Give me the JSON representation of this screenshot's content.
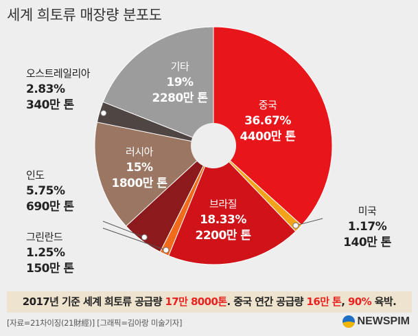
{
  "title": "세계 희토류 매장량 분포도",
  "chart_data": {
    "type": "pie",
    "title": "세계 희토류 매장량 분포도",
    "slices": [
      {
        "name": "중국",
        "percent_label": "36.67%",
        "amount_label": "4400만 톤",
        "value": 4400,
        "color": "#e8151b"
      },
      {
        "name": "미국",
        "percent_label": "1.17%",
        "amount_label": "140만 톤",
        "value": 140,
        "color": "#f5a21b"
      },
      {
        "name": "브라질",
        "percent_label": "18.33%",
        "amount_label": "2200만 톤",
        "value": 2200,
        "color": "#cf1319"
      },
      {
        "name": "그린란드",
        "percent_label": "1.25%",
        "amount_label": "150만 톤",
        "value": 150,
        "color": "#f26b1d"
      },
      {
        "name": "인도",
        "percent_label": "5.75%",
        "amount_label": "690만 톤",
        "value": 690,
        "color": "#8c1a1c"
      },
      {
        "name": "러시아",
        "percent_label": "15%",
        "amount_label": "1800만 톤",
        "value": 1800,
        "color": "#9b7662"
      },
      {
        "name": "오스트레일리아",
        "percent_label": "2.83%",
        "amount_label": "340만 톤",
        "value": 340,
        "color": "#4f4542"
      },
      {
        "name": "기타",
        "percent_label": "19%",
        "amount_label": "2280만 톤",
        "value": 2280,
        "color": "#9c9c9c"
      }
    ]
  },
  "summary": {
    "part1": "2017년 기준 세계 희토류 공급량 ",
    "hl1": "17만 8000톤",
    "part2": ". 중국 연간 공급량 ",
    "hl2": "16만 톤",
    "part3": ", ",
    "hl3": "90%",
    "part4": " 육박."
  },
  "footer": "[자료=21차이징(21財經)] [그래픽=김아랑 미술기자]",
  "logo": {
    "icon": "newspim-logo-icon",
    "text": "NEWSPIM"
  }
}
